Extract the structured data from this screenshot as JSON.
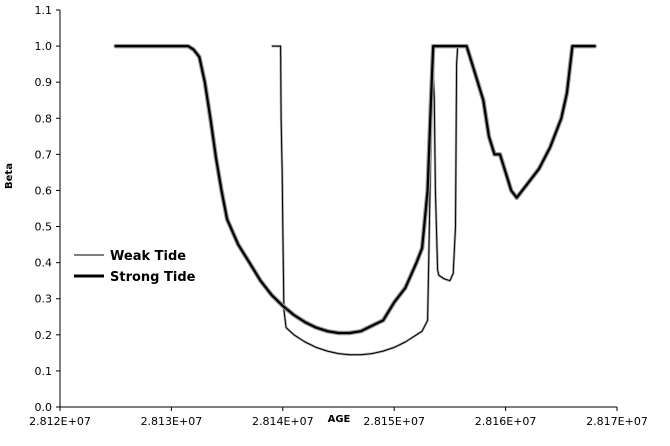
{
  "chart_data": {
    "type": "line",
    "title": "",
    "xlabel": "AGE",
    "ylabel": "Beta",
    "xlim": [
      28120000,
      28170000
    ],
    "ylim": [
      0.0,
      1.1
    ],
    "x_ticks": [
      {
        "value": 28120000,
        "label": "2.812E+07"
      },
      {
        "value": 28130000,
        "label": "2.813E+07"
      },
      {
        "value": 28140000,
        "label": "2.814E+07"
      },
      {
        "value": 28150000,
        "label": "2.815E+07"
      },
      {
        "value": 28160000,
        "label": "2.816E+07"
      },
      {
        "value": 28170000,
        "label": "2.817E+07"
      }
    ],
    "y_ticks": [
      {
        "value": 0.0,
        "label": "0.0"
      },
      {
        "value": 0.1,
        "label": "0.1"
      },
      {
        "value": 0.2,
        "label": "0.2"
      },
      {
        "value": 0.3,
        "label": "0.3"
      },
      {
        "value": 0.4,
        "label": "0.4"
      },
      {
        "value": 0.5,
        "label": "0.5"
      },
      {
        "value": 0.6,
        "label": "0.6"
      },
      {
        "value": 0.7,
        "label": "0.7"
      },
      {
        "value": 0.8,
        "label": "0.8"
      },
      {
        "value": 0.9,
        "label": "0.9"
      },
      {
        "value": 1.0,
        "label": "1.0"
      },
      {
        "value": 1.1,
        "label": "1.1"
      }
    ],
    "grid": false,
    "legend_position": "left-middle",
    "series": [
      {
        "name": "Weak Tide",
        "color": "#000000",
        "style": "thin",
        "x": [
          28139000,
          28139800,
          28139850,
          28139950,
          28140000,
          28140100,
          28140300,
          28141000,
          28142000,
          28143000,
          28144000,
          28145000,
          28146000,
          28147000,
          28148000,
          28149000,
          28150000,
          28151000,
          28152000,
          28152500,
          28153000,
          28153100,
          28153300,
          28153400,
          28153500,
          28153600,
          28153700,
          28153900,
          28154000,
          28154500,
          28155000,
          28155300,
          28155500,
          28155600,
          28155700
        ],
        "y": [
          1.0,
          1.0,
          0.8,
          0.65,
          0.5,
          0.27,
          0.22,
          0.2,
          0.18,
          0.165,
          0.155,
          0.148,
          0.145,
          0.145,
          0.148,
          0.155,
          0.165,
          0.18,
          0.2,
          0.21,
          0.24,
          0.4,
          0.75,
          0.92,
          0.93,
          0.85,
          0.6,
          0.38,
          0.365,
          0.355,
          0.35,
          0.37,
          0.5,
          0.95,
          1.0
        ]
      },
      {
        "name": "Strong Tide",
        "color": "#000000",
        "style": "thick",
        "x": [
          28125000,
          28127000,
          28130000,
          28131500,
          28132000,
          28132500,
          28133000,
          28133500,
          28134000,
          28134500,
          28135000,
          28136000,
          28137000,
          28138000,
          28139000,
          28140000,
          28141000,
          28142000,
          28143000,
          28144000,
          28145000,
          28146000,
          28147000,
          28148000,
          28149000,
          28150000,
          28151000,
          28152000,
          28152500,
          28153000,
          28153300,
          28153500,
          28155000,
          28156500,
          28157000,
          28158000,
          28158500,
          28159000,
          28159500,
          28160000,
          28160500,
          28161000,
          28162000,
          28163000,
          28164000,
          28165000,
          28165500,
          28166000,
          28167000,
          28168000
        ],
        "y": [
          1.0,
          1.0,
          1.0,
          1.0,
          0.99,
          0.97,
          0.9,
          0.8,
          0.69,
          0.6,
          0.52,
          0.45,
          0.4,
          0.35,
          0.31,
          0.28,
          0.255,
          0.235,
          0.22,
          0.21,
          0.205,
          0.205,
          0.21,
          0.225,
          0.24,
          0.29,
          0.33,
          0.4,
          0.44,
          0.6,
          0.85,
          1.0,
          1.0,
          1.0,
          0.95,
          0.85,
          0.75,
          0.7,
          0.7,
          0.65,
          0.6,
          0.58,
          0.62,
          0.66,
          0.72,
          0.8,
          0.87,
          1.0,
          1.0,
          1.0
        ]
      }
    ]
  }
}
